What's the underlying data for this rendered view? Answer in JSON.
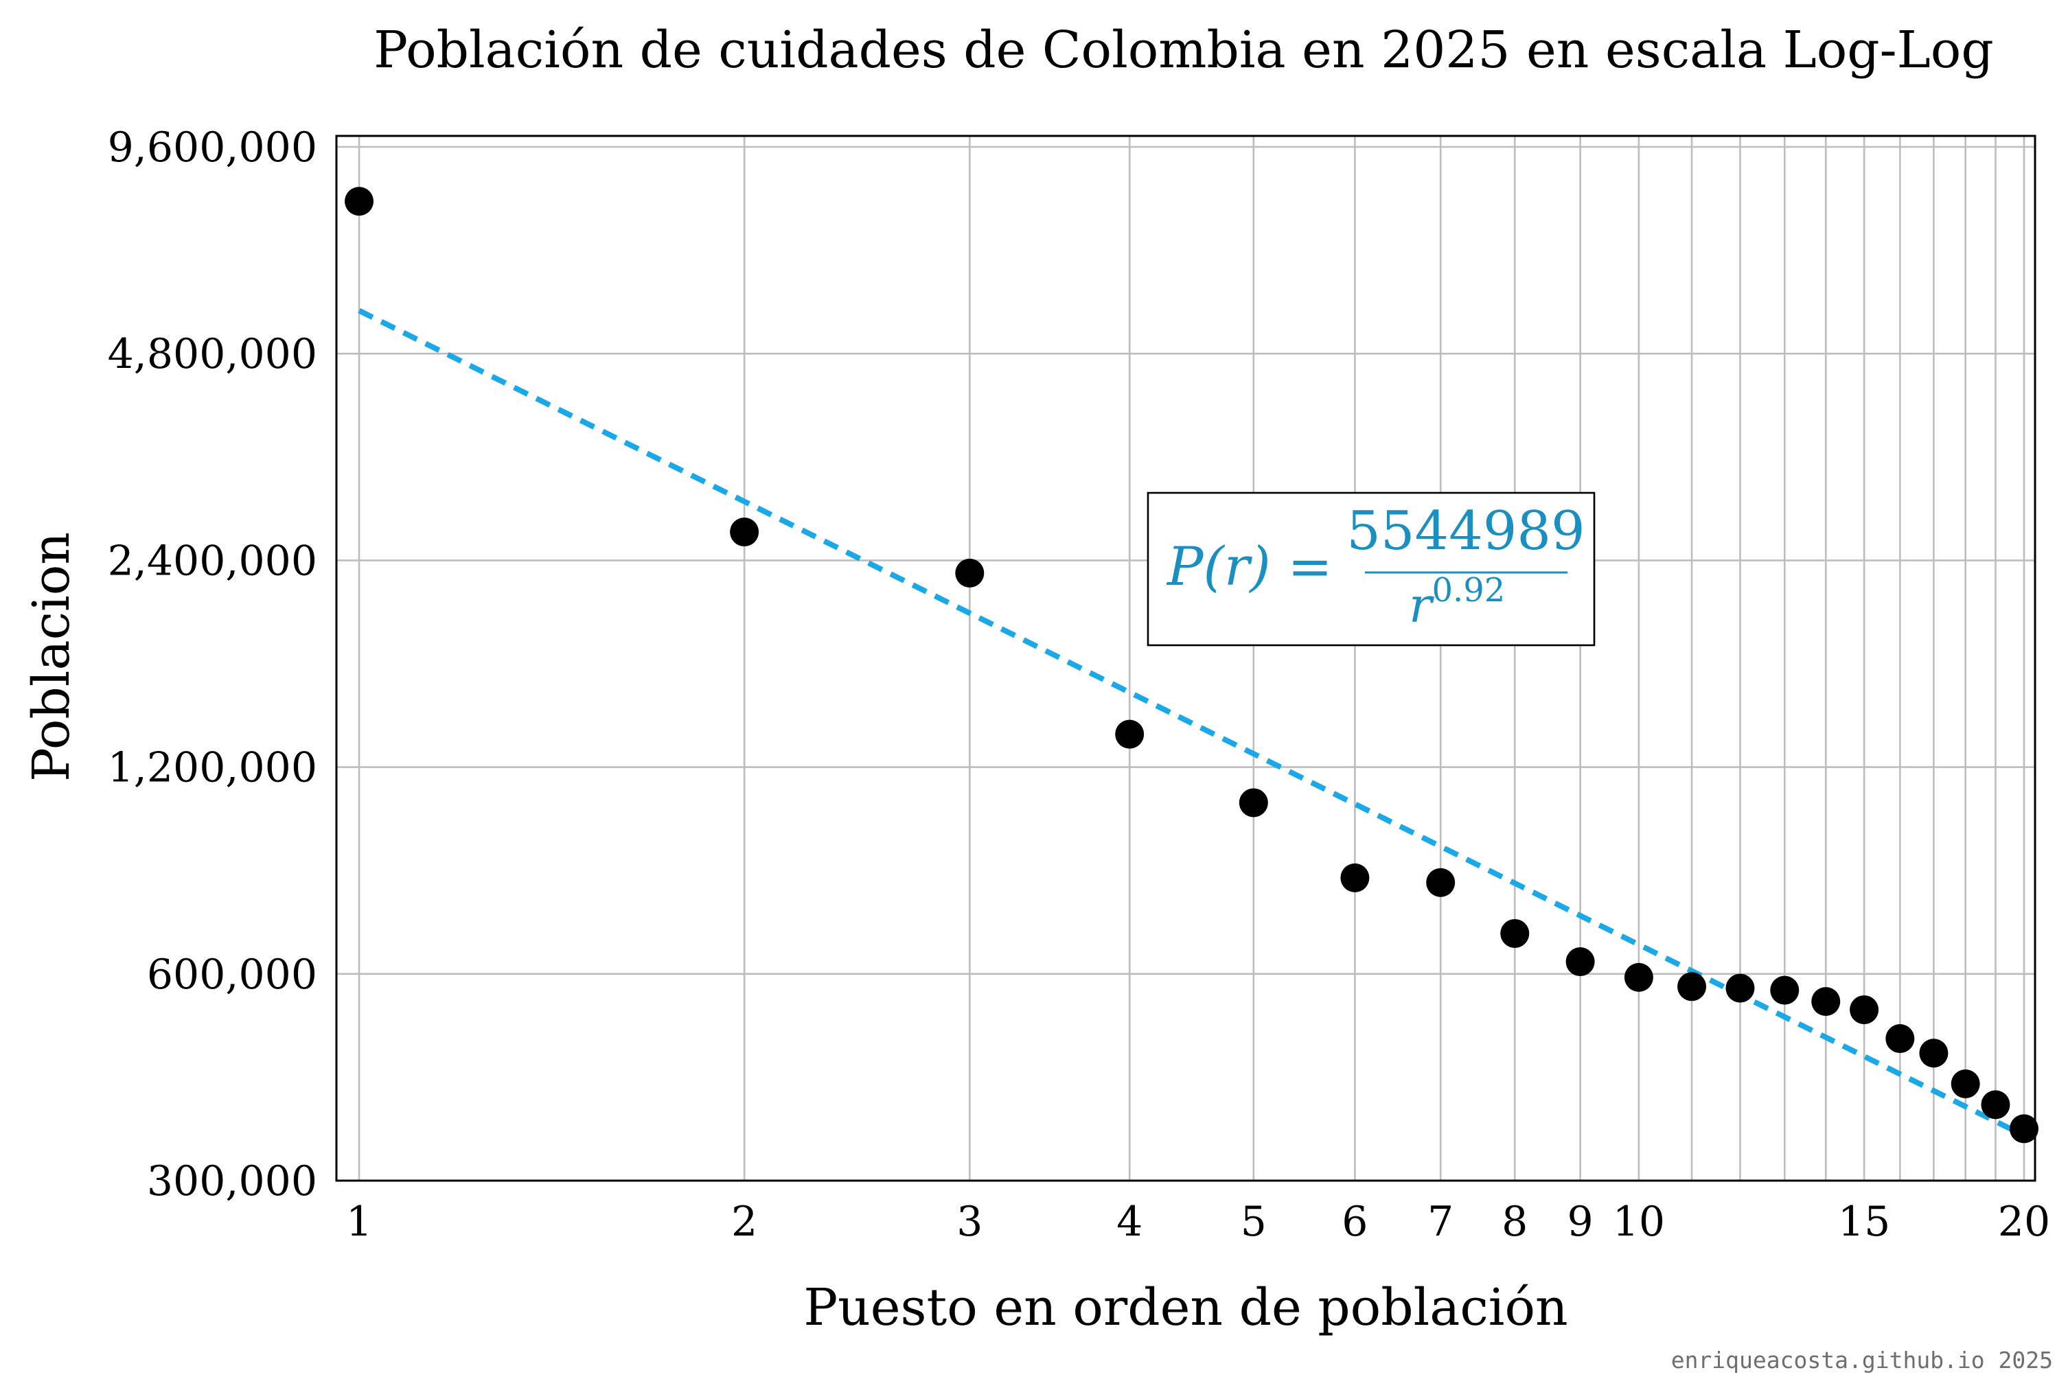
{
  "chart_data": {
    "type": "scatter",
    "title": "Población de cuidades de Colombia en 2025 en escala Log-Log",
    "xlabel": "Puesto en orden de población",
    "ylabel": "Poblacion",
    "x_scale": "log",
    "y_scale": "log",
    "xlim": [
      0.96,
      20.4
    ],
    "ylim": [
      300000,
      9600000
    ],
    "x_ticks": [
      1,
      2,
      3,
      4,
      5,
      6,
      7,
      8,
      9,
      10,
      15,
      20
    ],
    "x_tick_labels": [
      "1",
      "2",
      "3",
      "4",
      "5",
      "6",
      "7",
      "8",
      "9",
      "10",
      "15",
      "20"
    ],
    "x_gridlines": [
      1,
      2,
      3,
      4,
      5,
      6,
      7,
      8,
      9,
      10,
      11,
      12,
      13,
      14,
      15,
      16,
      17,
      18,
      19,
      20
    ],
    "y_ticks": [
      300000,
      600000,
      1200000,
      2400000,
      4800000,
      9600000
    ],
    "y_tick_labels": [
      "300,000",
      "600,000",
      "1,200,000",
      "2,400,000",
      "4,800,000",
      "9,600,000"
    ],
    "grid": true,
    "series": [
      {
        "kind": "scatter",
        "color": "#000000",
        "x": [
          1,
          2,
          3,
          4,
          5,
          6,
          7,
          8,
          9,
          10,
          11,
          12,
          13,
          14,
          15,
          16,
          17,
          18,
          19,
          20
        ],
        "y": [
          8000000,
          2640000,
          2300000,
          1340000,
          1065000,
          828000,
          815000,
          687000,
          625000,
          593000,
          575000,
          572000,
          568000,
          547000,
          532000,
          483000,
          460000,
          415000,
          387000,
          357000
        ]
      },
      {
        "kind": "fit-line",
        "color": "#1ba8e6",
        "style": "dashed",
        "x": [
          1,
          20
        ],
        "y": [
          5544989,
          349000
        ]
      }
    ],
    "annotations": {
      "equation_lhs": "P(r) =",
      "equation_numerator": "5544989",
      "equation_denominator_base": "r",
      "equation_denominator_exponent": "0.92",
      "equation_color": "#1a8fc0"
    },
    "footer": "enriqueacosta.github.io 2025"
  }
}
